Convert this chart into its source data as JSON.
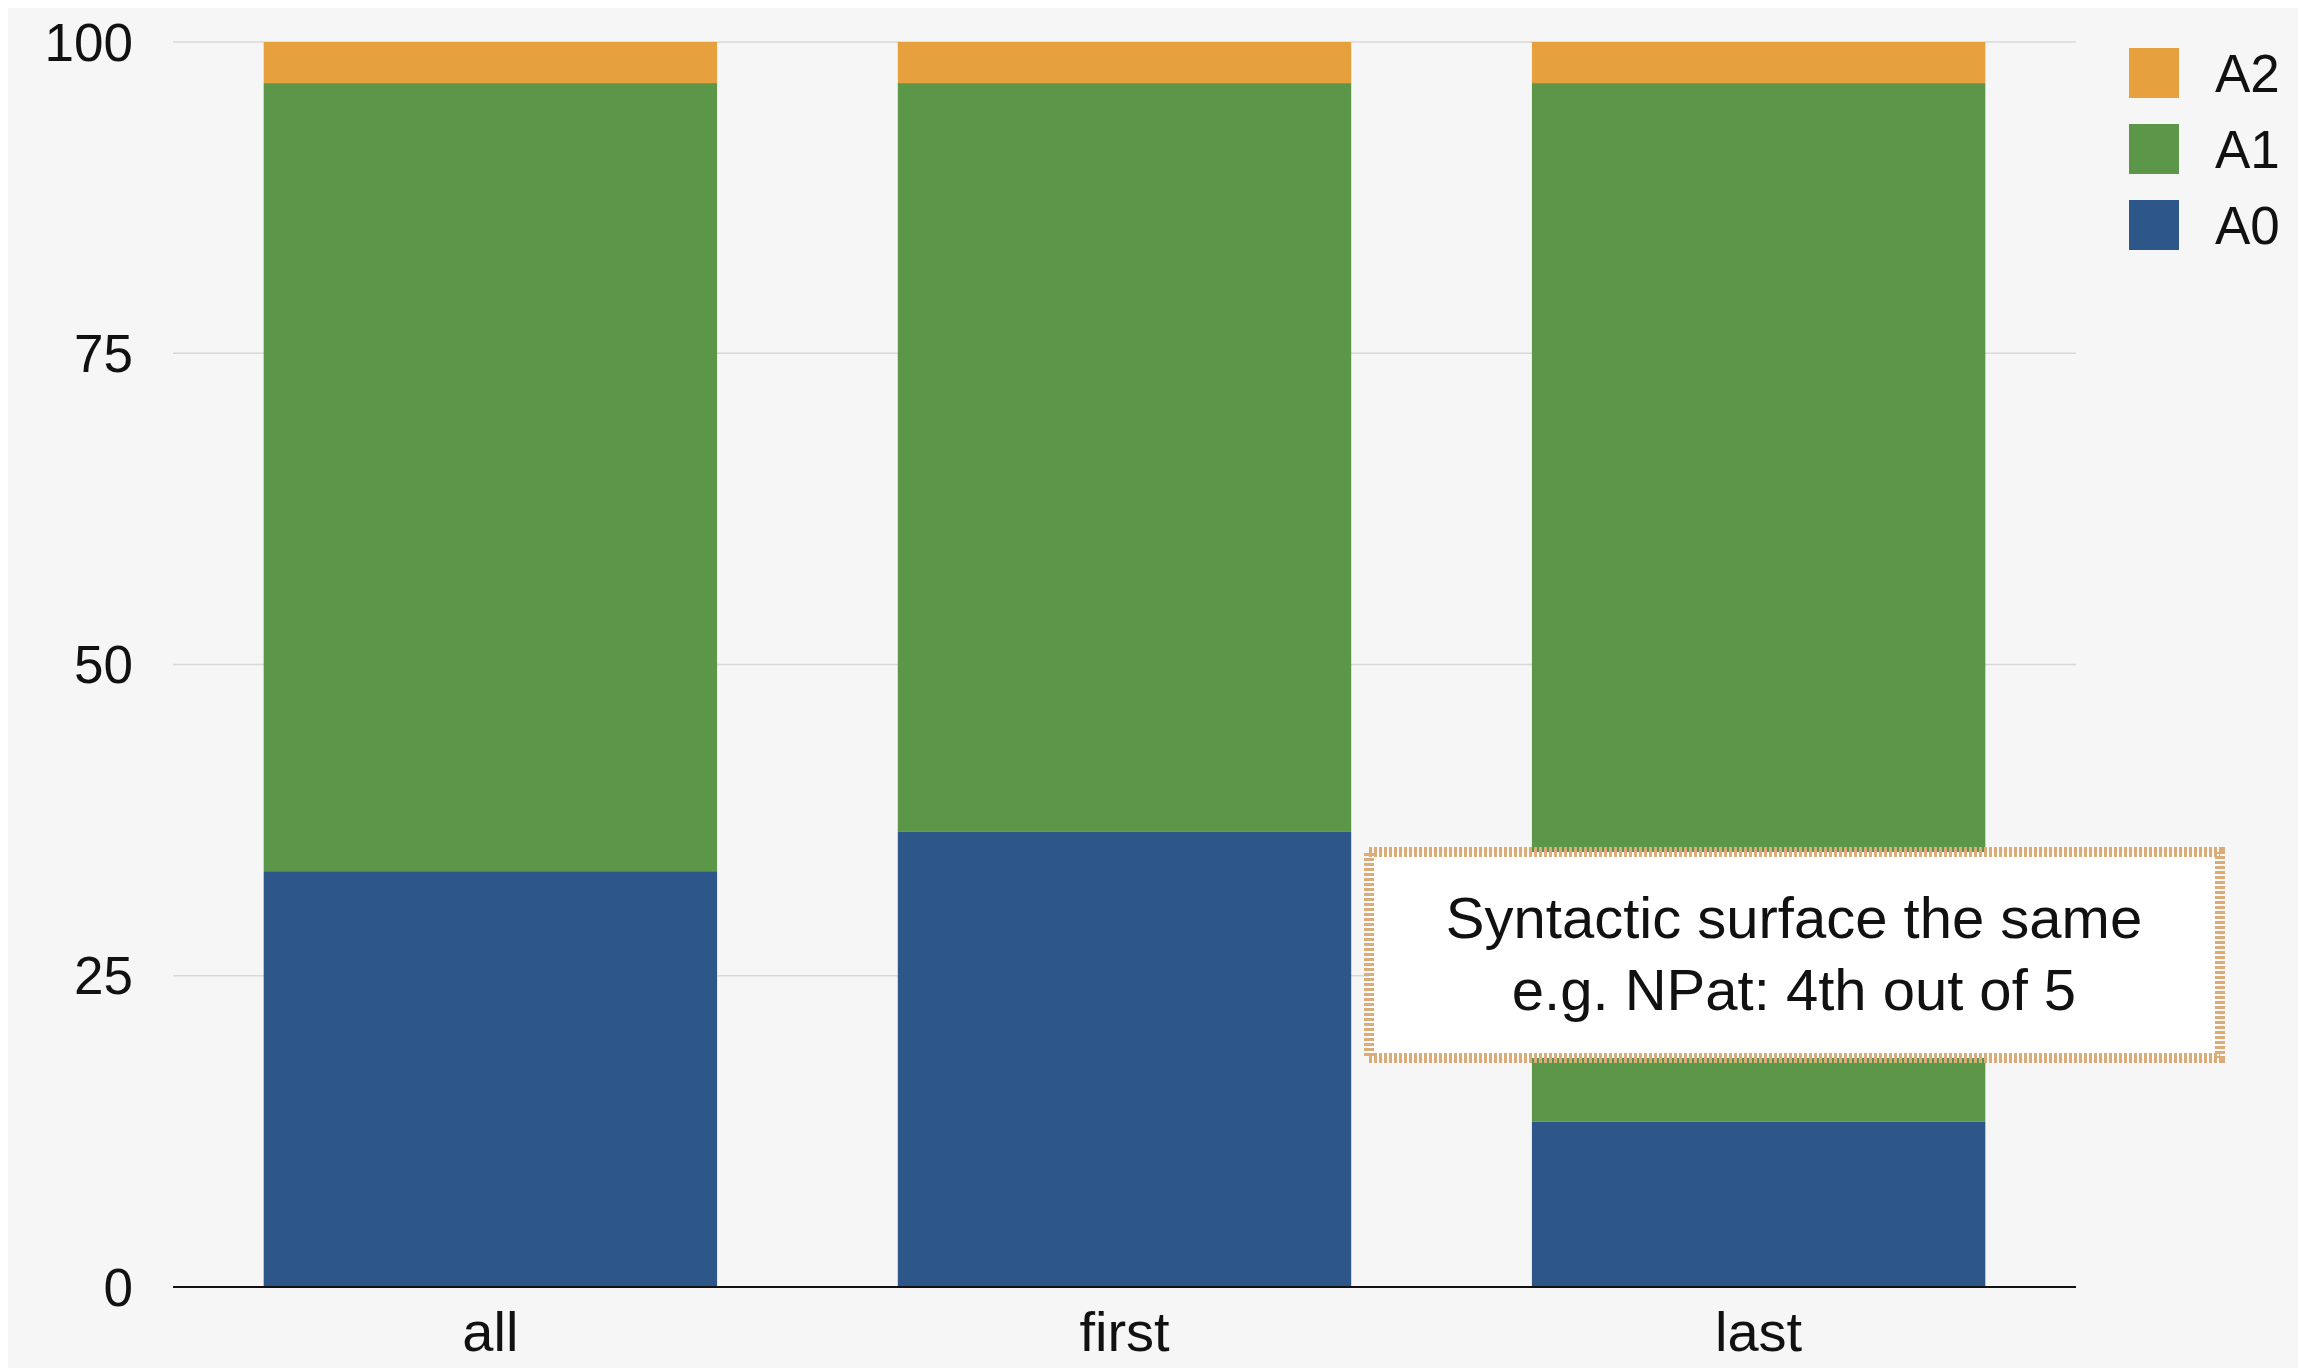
{
  "chart_data": {
    "type": "bar",
    "stacked": true,
    "categories": [
      "all",
      "first",
      "last"
    ],
    "series": [
      {
        "name": "A0",
        "color": "#2e5789",
        "values": [
          33.4,
          36.6,
          13.3
        ]
      },
      {
        "name": "A1",
        "color": "#5c9649",
        "values": [
          63.3,
          60.1,
          83.4
        ]
      },
      {
        "name": "A2",
        "color": "#e6a13e",
        "values": [
          3.3,
          3.3,
          3.3
        ]
      }
    ],
    "ylim": [
      0,
      100
    ],
    "yticks": [
      0,
      25,
      50,
      75,
      100
    ],
    "grid": "y",
    "legend": "top right",
    "annotations": [
      "Syntactic surface the same\ne.g. NPat: 4th out of 5"
    ]
  }
}
